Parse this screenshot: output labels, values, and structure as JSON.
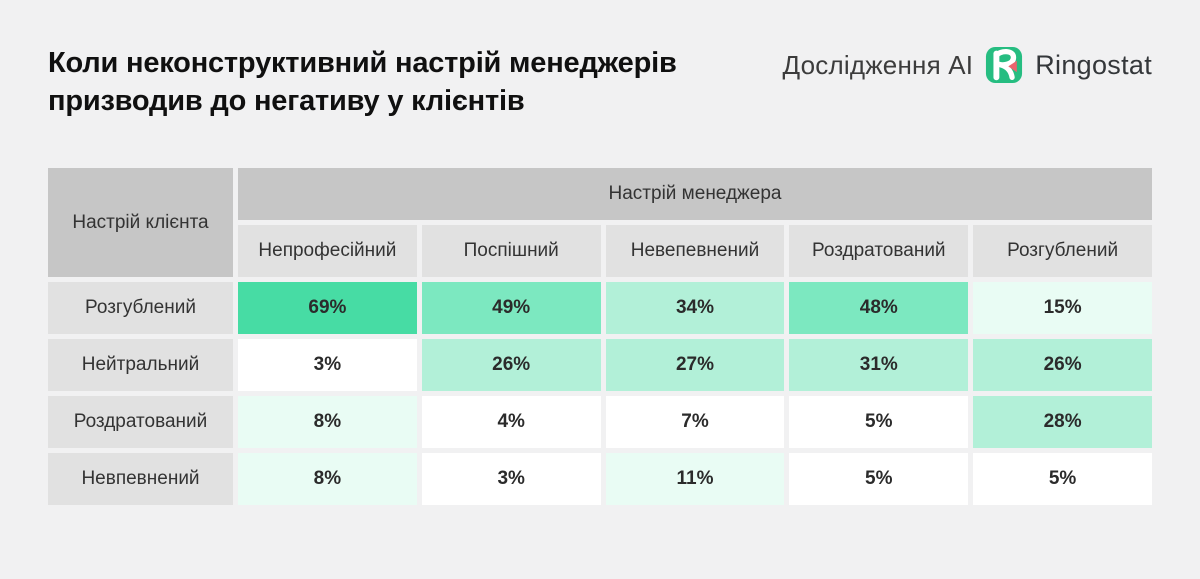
{
  "page": {
    "background": "#f1f1f2"
  },
  "header": {
    "research_label": "Дослідження AI",
    "brand_name": "Ringostat"
  },
  "chart_data": {
    "type": "heatmap",
    "title": "Коли неконструктивний настрій менеджерів призводив до негативу у клієнтів",
    "col_axis_label": "Настрій менеджера",
    "row_axis_label": "Настрій клієнта",
    "columns": [
      "Непрофесійний",
      "Поспішний",
      "Невепевнений",
      "Роздратований",
      "Розгублений"
    ],
    "rows": [
      "Розгублений",
      "Нейтральний",
      "Роздратований",
      "Невпевнений"
    ],
    "values": [
      [
        69,
        49,
        34,
        48,
        15
      ],
      [
        3,
        26,
        27,
        31,
        26
      ],
      [
        8,
        4,
        7,
        5,
        28
      ],
      [
        8,
        3,
        11,
        5,
        5
      ]
    ],
    "unit": "%",
    "legend_position": "none",
    "color_bins": [
      {
        "min": 60,
        "color": "#47dca4"
      },
      {
        "min": 40,
        "color": "#7ce8c0"
      },
      {
        "min": 20,
        "color": "#b2f0d8"
      },
      {
        "min": 8,
        "color": "#e9fcf4"
      },
      {
        "min": 0,
        "color": "#ffffff"
      }
    ]
  },
  "colors": {
    "background": "#f1f1f2",
    "header_dark_gray": "#c6c6c6",
    "header_light_gray": "#e1e1e1",
    "title_text": "#101010",
    "cell_text": "#2b2b2b",
    "brand_green": "#26bd81",
    "brand_red": "#e9656e"
  }
}
